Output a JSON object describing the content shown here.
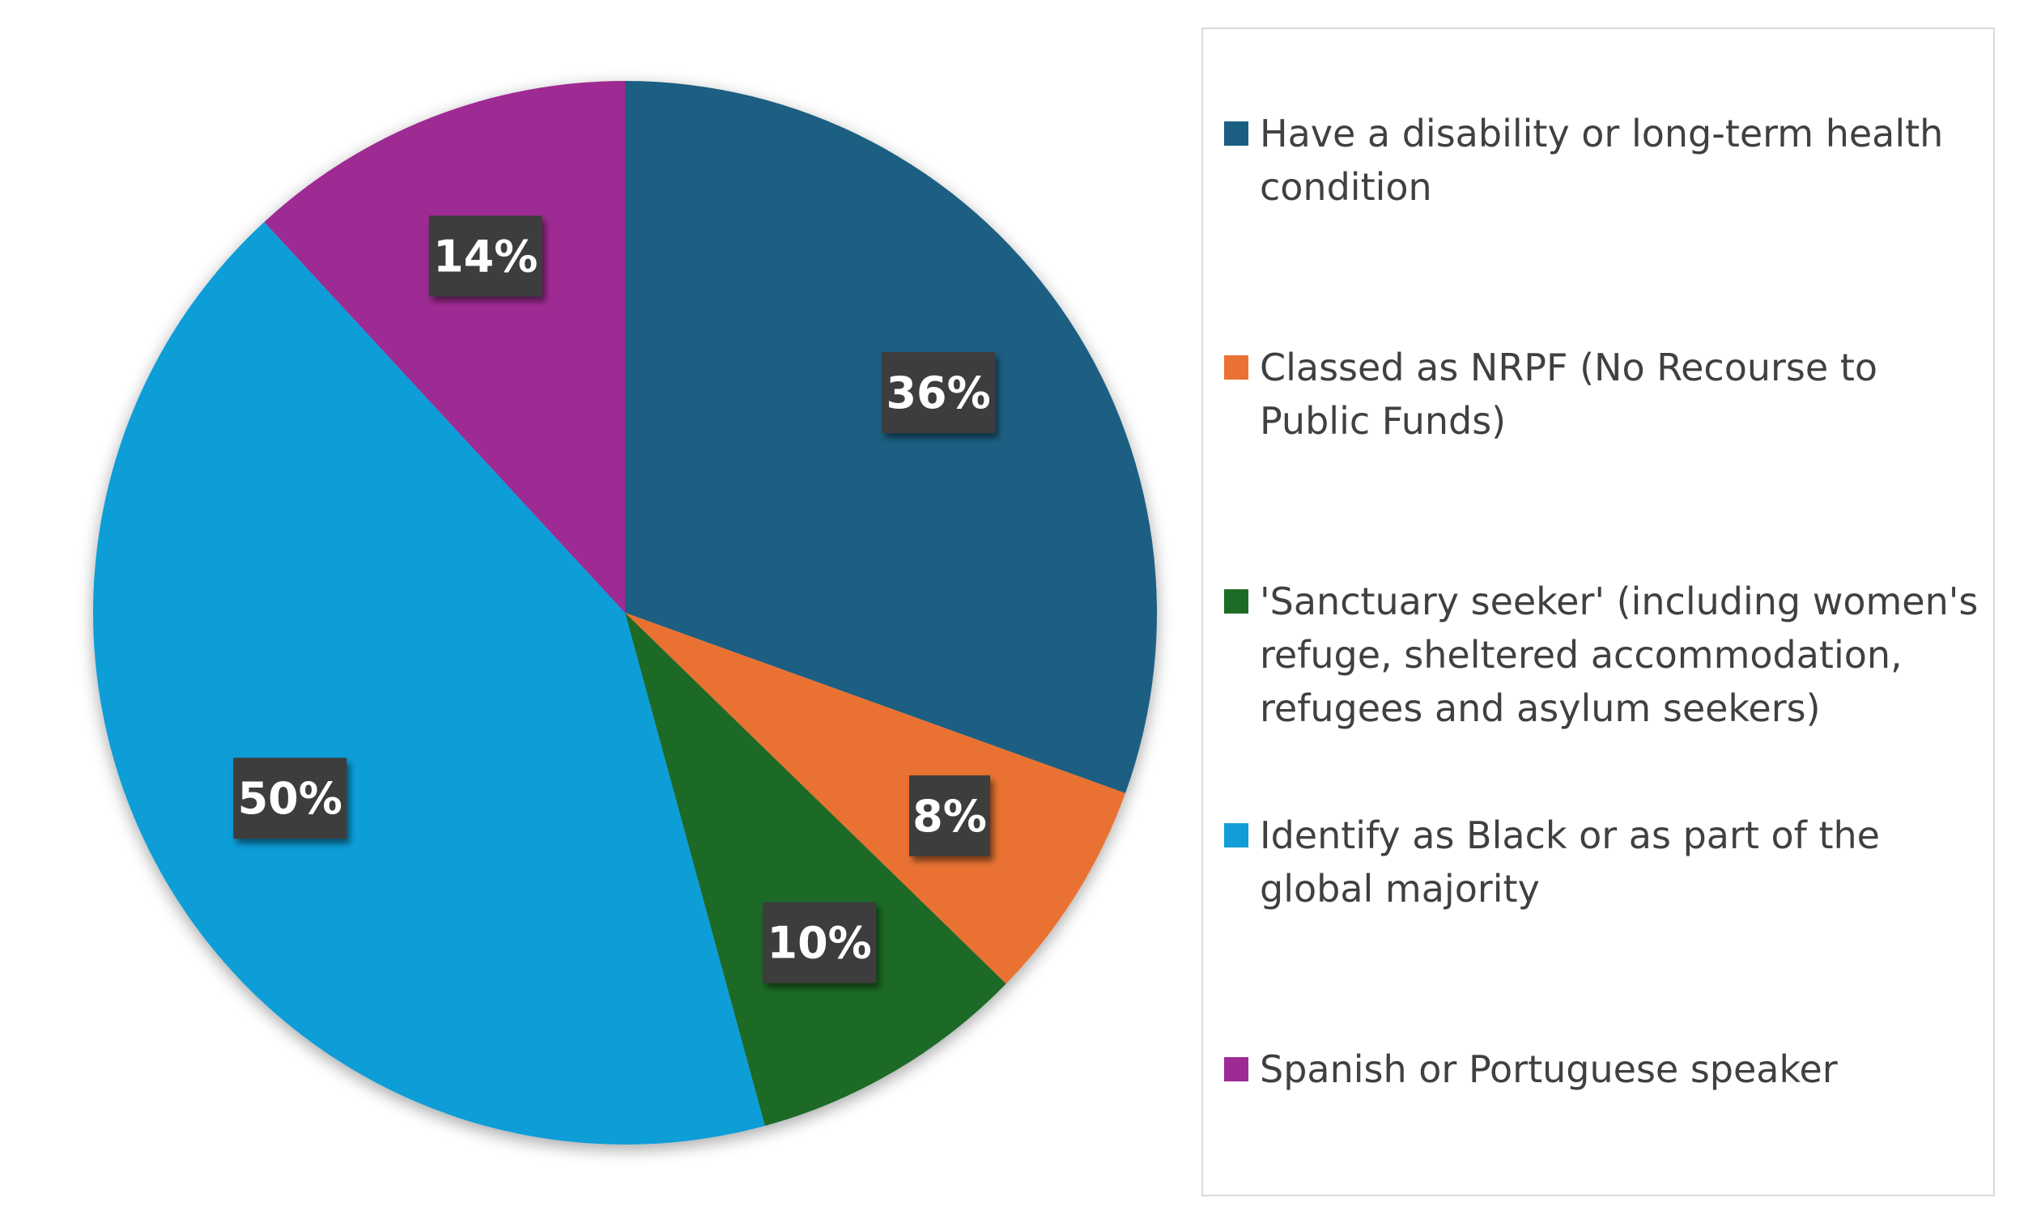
{
  "chart_data": {
    "type": "pie",
    "title": "",
    "categories": [
      "Have a disability or long-term health condition",
      "Classed as NRPF (No Recourse to Public Funds)",
      "'Sanctuary seeker' (including women's refuge, sheltered accommodation, refugees and asylum seekers)",
      "Identify as Black or as part of the global majority",
      "Spanish or Portuguese speaker"
    ],
    "values": [
      36,
      8,
      10,
      50,
      14
    ],
    "data_labels": [
      "36%",
      "8%",
      "10%",
      "50%",
      "14%"
    ],
    "colors": [
      "#1a5f82",
      "#e97232",
      "#1d6b25",
      "#119dd7",
      "#9e2a93"
    ],
    "legend_position": "right"
  }
}
